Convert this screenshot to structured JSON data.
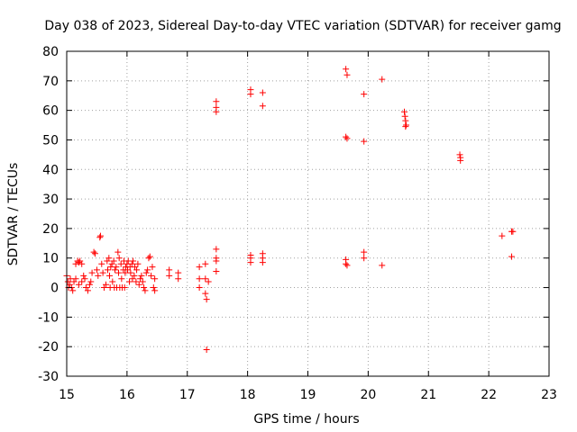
{
  "chart_data": {
    "type": "scatter",
    "title": "Day 038 of 2023, Sidereal Day-to-day VTEC variation (SDTVAR) for receiver gamg",
    "xlabel": "GPS time / hours",
    "ylabel": "SDTVAR / TECUs",
    "xlim": [
      15,
      23
    ],
    "ylim": [
      -30,
      80
    ],
    "xticks": [
      15,
      16,
      17,
      18,
      19,
      20,
      21,
      22,
      23
    ],
    "yticks": [
      -30,
      -20,
      -10,
      0,
      10,
      20,
      30,
      40,
      50,
      60,
      70,
      80
    ],
    "grid": true,
    "marker": "+",
    "series": [
      {
        "name": "SDTVAR",
        "color": "#ff0000",
        "points": [
          [
            15.0,
            4
          ],
          [
            15.02,
            2
          ],
          [
            15.03,
            0
          ],
          [
            15.05,
            1
          ],
          [
            15.06,
            3
          ],
          [
            15.08,
            0
          ],
          [
            15.1,
            -1
          ],
          [
            15.12,
            2
          ],
          [
            15.15,
            8
          ],
          [
            15.18,
            9
          ],
          [
            15.2,
            8.5
          ],
          [
            15.22,
            9
          ],
          [
            15.25,
            8
          ],
          [
            15.15,
            3
          ],
          [
            15.2,
            1
          ],
          [
            15.25,
            2
          ],
          [
            15.28,
            4
          ],
          [
            15.3,
            3
          ],
          [
            15.32,
            0
          ],
          [
            15.35,
            -1
          ],
          [
            15.38,
            1
          ],
          [
            15.4,
            2
          ],
          [
            15.42,
            5
          ],
          [
            15.45,
            12
          ],
          [
            15.47,
            11.5
          ],
          [
            15.5,
            6
          ],
          [
            15.52,
            4
          ],
          [
            15.55,
            17
          ],
          [
            15.56,
            17.5
          ],
          [
            15.58,
            8
          ],
          [
            15.6,
            5
          ],
          [
            15.62,
            0
          ],
          [
            15.65,
            1
          ],
          [
            15.67,
            9
          ],
          [
            15.68,
            6
          ],
          [
            15.7,
            10
          ],
          [
            15.71,
            4
          ],
          [
            15.72,
            0
          ],
          [
            15.73,
            7
          ],
          [
            15.75,
            8
          ],
          [
            15.76,
            2
          ],
          [
            15.78,
            9
          ],
          [
            15.79,
            0
          ],
          [
            15.8,
            6
          ],
          [
            15.82,
            7
          ],
          [
            15.83,
            0
          ],
          [
            15.85,
            12
          ],
          [
            15.86,
            5
          ],
          [
            15.87,
            10
          ],
          [
            15.88,
            0
          ],
          [
            15.9,
            8
          ],
          [
            15.91,
            3
          ],
          [
            15.92,
            0
          ],
          [
            15.94,
            6
          ],
          [
            15.95,
            9
          ],
          [
            15.96,
            0
          ],
          [
            15.97,
            5
          ],
          [
            15.98,
            7
          ],
          [
            16.0,
            8
          ],
          [
            16.01,
            6
          ],
          [
            16.02,
            9
          ],
          [
            16.04,
            2
          ],
          [
            16.05,
            7
          ],
          [
            16.06,
            5
          ],
          [
            16.08,
            8
          ],
          [
            16.09,
            3
          ],
          [
            16.1,
            9
          ],
          [
            16.12,
            4
          ],
          [
            16.13,
            7
          ],
          [
            16.15,
            2
          ],
          [
            16.16,
            6
          ],
          [
            16.18,
            8
          ],
          [
            16.2,
            1
          ],
          [
            16.22,
            3
          ],
          [
            16.24,
            4
          ],
          [
            16.26,
            2
          ],
          [
            16.28,
            0
          ],
          [
            16.3,
            -1
          ],
          [
            16.32,
            5
          ],
          [
            16.34,
            6
          ],
          [
            16.36,
            10
          ],
          [
            16.38,
            10.5
          ],
          [
            16.4,
            4
          ],
          [
            16.42,
            7
          ],
          [
            16.44,
            0
          ],
          [
            16.46,
            -1
          ],
          [
            16.46,
            3
          ],
          [
            16.7,
            6
          ],
          [
            16.7,
            4
          ],
          [
            16.85,
            5
          ],
          [
            16.85,
            3
          ],
          [
            17.2,
            7
          ],
          [
            17.2,
            3
          ],
          [
            17.2,
            0
          ],
          [
            17.3,
            8
          ],
          [
            17.3,
            3
          ],
          [
            17.3,
            -2
          ],
          [
            17.32,
            -4
          ],
          [
            17.35,
            2
          ],
          [
            17.32,
            -21
          ],
          [
            17.48,
            63
          ],
          [
            17.48,
            61
          ],
          [
            17.48,
            59.5
          ],
          [
            17.48,
            13
          ],
          [
            17.48,
            10
          ],
          [
            17.48,
            9
          ],
          [
            17.48,
            5.5
          ],
          [
            18.05,
            67
          ],
          [
            18.05,
            65.5
          ],
          [
            18.05,
            11
          ],
          [
            18.05,
            10
          ],
          [
            18.05,
            8.5
          ],
          [
            18.25,
            66
          ],
          [
            18.25,
            61.5
          ],
          [
            18.25,
            11.5
          ],
          [
            18.25,
            10
          ],
          [
            18.25,
            8.5
          ],
          [
            19.63,
            74
          ],
          [
            19.65,
            72
          ],
          [
            19.63,
            51
          ],
          [
            19.65,
            50.5
          ],
          [
            19.63,
            9.5
          ],
          [
            19.63,
            8
          ],
          [
            19.65,
            7.5
          ],
          [
            19.93,
            65.5
          ],
          [
            19.93,
            49.5
          ],
          [
            19.93,
            12
          ],
          [
            19.93,
            10
          ],
          [
            20.23,
            70.5
          ],
          [
            20.23,
            7.5
          ],
          [
            20.6,
            59.5
          ],
          [
            20.61,
            58
          ],
          [
            20.62,
            56.5
          ],
          [
            20.63,
            55
          ],
          [
            20.62,
            54.5
          ],
          [
            21.52,
            45
          ],
          [
            21.53,
            44
          ],
          [
            21.53,
            43
          ],
          [
            22.22,
            17.5
          ],
          [
            22.38,
            19
          ],
          [
            22.4,
            19
          ],
          [
            22.38,
            10.5
          ]
        ]
      }
    ]
  }
}
